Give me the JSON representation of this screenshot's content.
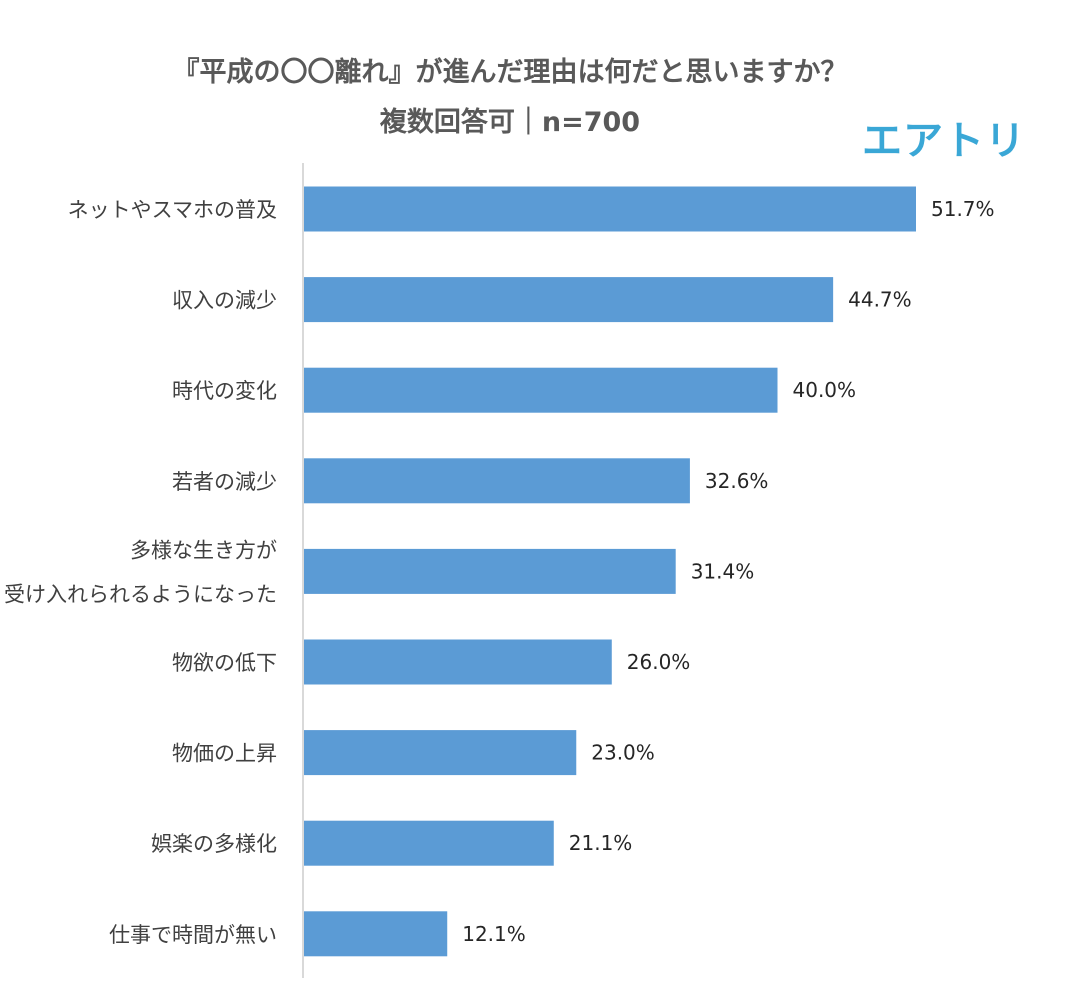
{
  "chart_data": {
    "type": "bar",
    "orientation": "horizontal",
    "title": "『平成の〇〇離れ』が進んだ理由は何だと思いますか？",
    "subtitle": "複数回答可｜n=700",
    "brand": "エアトリ",
    "categories": [
      [
        "ネットやスマホの普及"
      ],
      [
        "収入の減少"
      ],
      [
        "時代の変化"
      ],
      [
        "若者の減少"
      ],
      [
        "多様な生き方が",
        "受け入れられるようになった"
      ],
      [
        "物欲の低下"
      ],
      [
        "物価の上昇"
      ],
      [
        "娯楽の多様化"
      ],
      [
        "仕事で時間が無い"
      ]
    ],
    "values": [
      51.7,
      44.7,
      40.0,
      32.6,
      31.4,
      26.0,
      23.0,
      21.1,
      12.1
    ],
    "value_labels": [
      "51.7%",
      "44.7%",
      "40.0%",
      "32.6%",
      "31.4%",
      "26.0%",
      "23.0%",
      "21.1%",
      "12.1%"
    ],
    "bar_color": "#5b9bd5",
    "axis_color": "#d9d9d9",
    "brand_color": "#3aa7d6",
    "grid": false,
    "legend": "none"
  }
}
